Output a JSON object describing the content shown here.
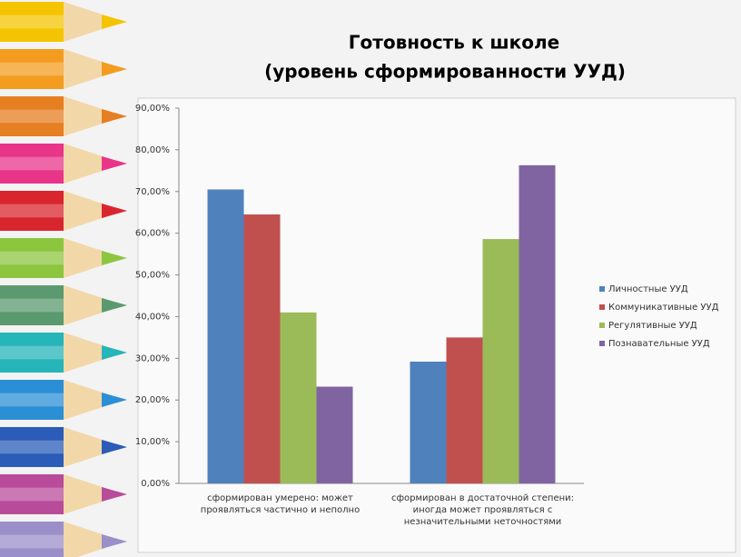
{
  "chart_data": {
    "type": "bar",
    "title": [
      "Готовность  к школе",
      "(уровень сформированности УУД)"
    ],
    "categories": [
      "сформирован умерено: может проявляться частично и неполно",
      "сформирован в достаточной степени: иногда может проявляться с незначительными неточностями"
    ],
    "series": [
      {
        "name": "Личностные УУД",
        "color": "#4f81bd",
        "values": [
          70.5,
          29.2
        ]
      },
      {
        "name": "Коммуникативные УУД",
        "color": "#c0504d",
        "values": [
          64.5,
          35
        ]
      },
      {
        "name": "Регулятивные УУД",
        "color": "#9bbb59",
        "values": [
          41,
          58.6
        ]
      },
      {
        "name": "Познавательные УУД",
        "color": "#8064a2",
        "values": [
          23.2,
          76.3
        ]
      }
    ],
    "ylim": [
      0,
      90
    ],
    "yticks": [
      {
        "value": 0,
        "label": "0,00%"
      },
      {
        "value": 10,
        "label": "10,00%"
      },
      {
        "value": 20,
        "label": "20,00%"
      },
      {
        "value": 30,
        "label": "30,00%"
      },
      {
        "value": 40,
        "label": "40,00%"
      },
      {
        "value": 50,
        "label": "50,00%"
      },
      {
        "value": 60,
        "label": "60,00%"
      },
      {
        "value": 70,
        "label": "70,00%"
      },
      {
        "value": 80,
        "label": "80,00%"
      },
      {
        "value": 90,
        "label": "90,00%"
      }
    ],
    "legend": "right"
  }
}
